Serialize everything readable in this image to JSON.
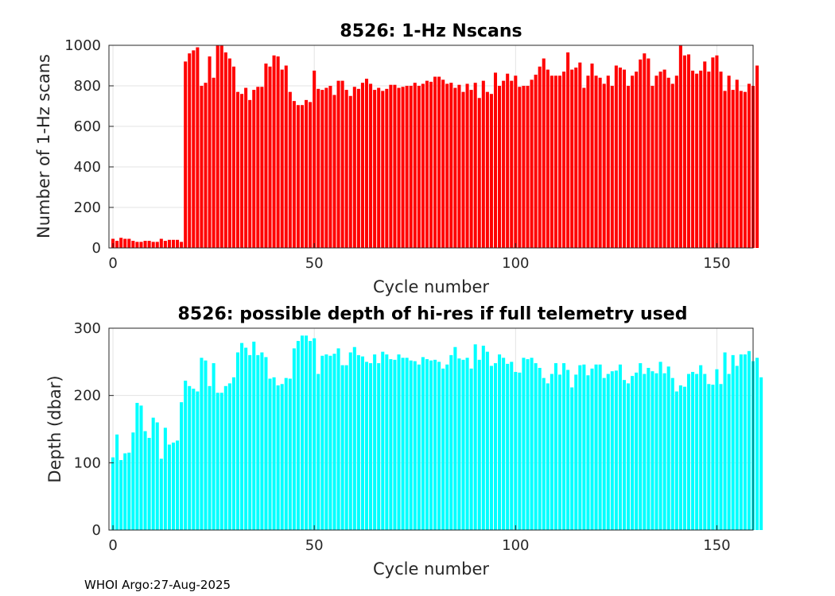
{
  "footer": "WHOI Argo:27-Aug-2025",
  "chart_data": [
    {
      "type": "bar",
      "title": "8526: 1-Hz Nscans",
      "xlabel": "Cycle number",
      "ylabel": "Number of 1-Hz scans",
      "xlim": [
        -1,
        159
      ],
      "ylim": [
        0,
        1000
      ],
      "xticks": [
        0,
        50,
        100,
        150
      ],
      "yticks": [
        0,
        200,
        400,
        600,
        800,
        1000
      ],
      "color": "#ff0000",
      "grid": true,
      "x_start": 0,
      "values": [
        45,
        35,
        50,
        45,
        45,
        35,
        30,
        30,
        35,
        35,
        30,
        30,
        45,
        35,
        40,
        40,
        40,
        30,
        920,
        960,
        975,
        990,
        800,
        815,
        945,
        840,
        1000,
        1000,
        965,
        935,
        895,
        770,
        760,
        790,
        730,
        780,
        795,
        795,
        910,
        895,
        950,
        945,
        880,
        900,
        770,
        725,
        705,
        705,
        730,
        720,
        875,
        785,
        780,
        790,
        800,
        755,
        825,
        825,
        780,
        750,
        795,
        785,
        815,
        835,
        810,
        780,
        790,
        775,
        785,
        805,
        805,
        790,
        795,
        800,
        800,
        815,
        800,
        810,
        825,
        820,
        845,
        845,
        830,
        810,
        815,
        790,
        805,
        770,
        810,
        780,
        815,
        740,
        825,
        770,
        760,
        865,
        800,
        825,
        860,
        825,
        850,
        795,
        800,
        800,
        830,
        855,
        895,
        935,
        880,
        850,
        850,
        850,
        870,
        965,
        880,
        890,
        915,
        790,
        850,
        910,
        850,
        840,
        810,
        850,
        800,
        900,
        890,
        880,
        800,
        850,
        870,
        930,
        960,
        935,
        800,
        850,
        870,
        880,
        840,
        810,
        850,
        1000,
        950,
        955,
        875,
        860,
        875,
        920,
        870,
        940,
        950,
        870,
        775,
        850,
        780,
        830,
        775,
        770,
        810,
        800,
        900
      ]
    },
    {
      "type": "bar",
      "title": "8526: possible depth of hi-res if full telemetry used",
      "xlabel": "Cycle number",
      "ylabel": "Depth (dbar)",
      "xlim": [
        -1,
        159
      ],
      "ylim": [
        0,
        300
      ],
      "xticks": [
        0,
        50,
        100,
        150
      ],
      "yticks": [
        0,
        100,
        200,
        300
      ],
      "color": "#00ffff",
      "grid": true,
      "x_start": 0,
      "values": [
        108,
        142,
        104,
        114,
        115,
        145,
        189,
        185,
        147,
        137,
        167,
        160,
        106,
        152,
        127,
        130,
        133,
        190,
        222,
        214,
        210,
        206,
        256,
        252,
        214,
        248,
        204,
        204,
        214,
        218,
        227,
        264,
        278,
        271,
        260,
        280,
        260,
        264,
        257,
        225,
        227,
        215,
        217,
        226,
        225,
        270,
        281,
        289,
        289,
        281,
        285,
        232,
        259,
        261,
        259,
        262,
        270,
        245,
        245,
        264,
        272,
        260,
        258,
        250,
        248,
        261,
        248,
        265,
        261,
        254,
        253,
        261,
        256,
        256,
        252,
        251,
        246,
        257,
        254,
        252,
        253,
        250,
        240,
        246,
        260,
        272,
        255,
        253,
        256,
        240,
        276,
        253,
        274,
        265,
        244,
        248,
        261,
        256,
        247,
        250,
        235,
        234,
        256,
        254,
        256,
        248,
        241,
        226,
        218,
        232,
        248,
        231,
        248,
        238,
        212,
        231,
        245,
        246,
        230,
        240,
        246,
        246,
        226,
        232,
        236,
        237,
        246,
        223,
        218,
        229,
        234,
        248,
        232,
        241,
        236,
        233,
        250,
        233,
        243,
        226,
        206,
        215,
        213,
        232,
        235,
        232,
        245,
        232,
        217,
        216,
        239,
        217,
        264,
        232,
        260,
        244,
        261,
        261,
        266,
        251,
        256,
        227
      ]
    }
  ]
}
